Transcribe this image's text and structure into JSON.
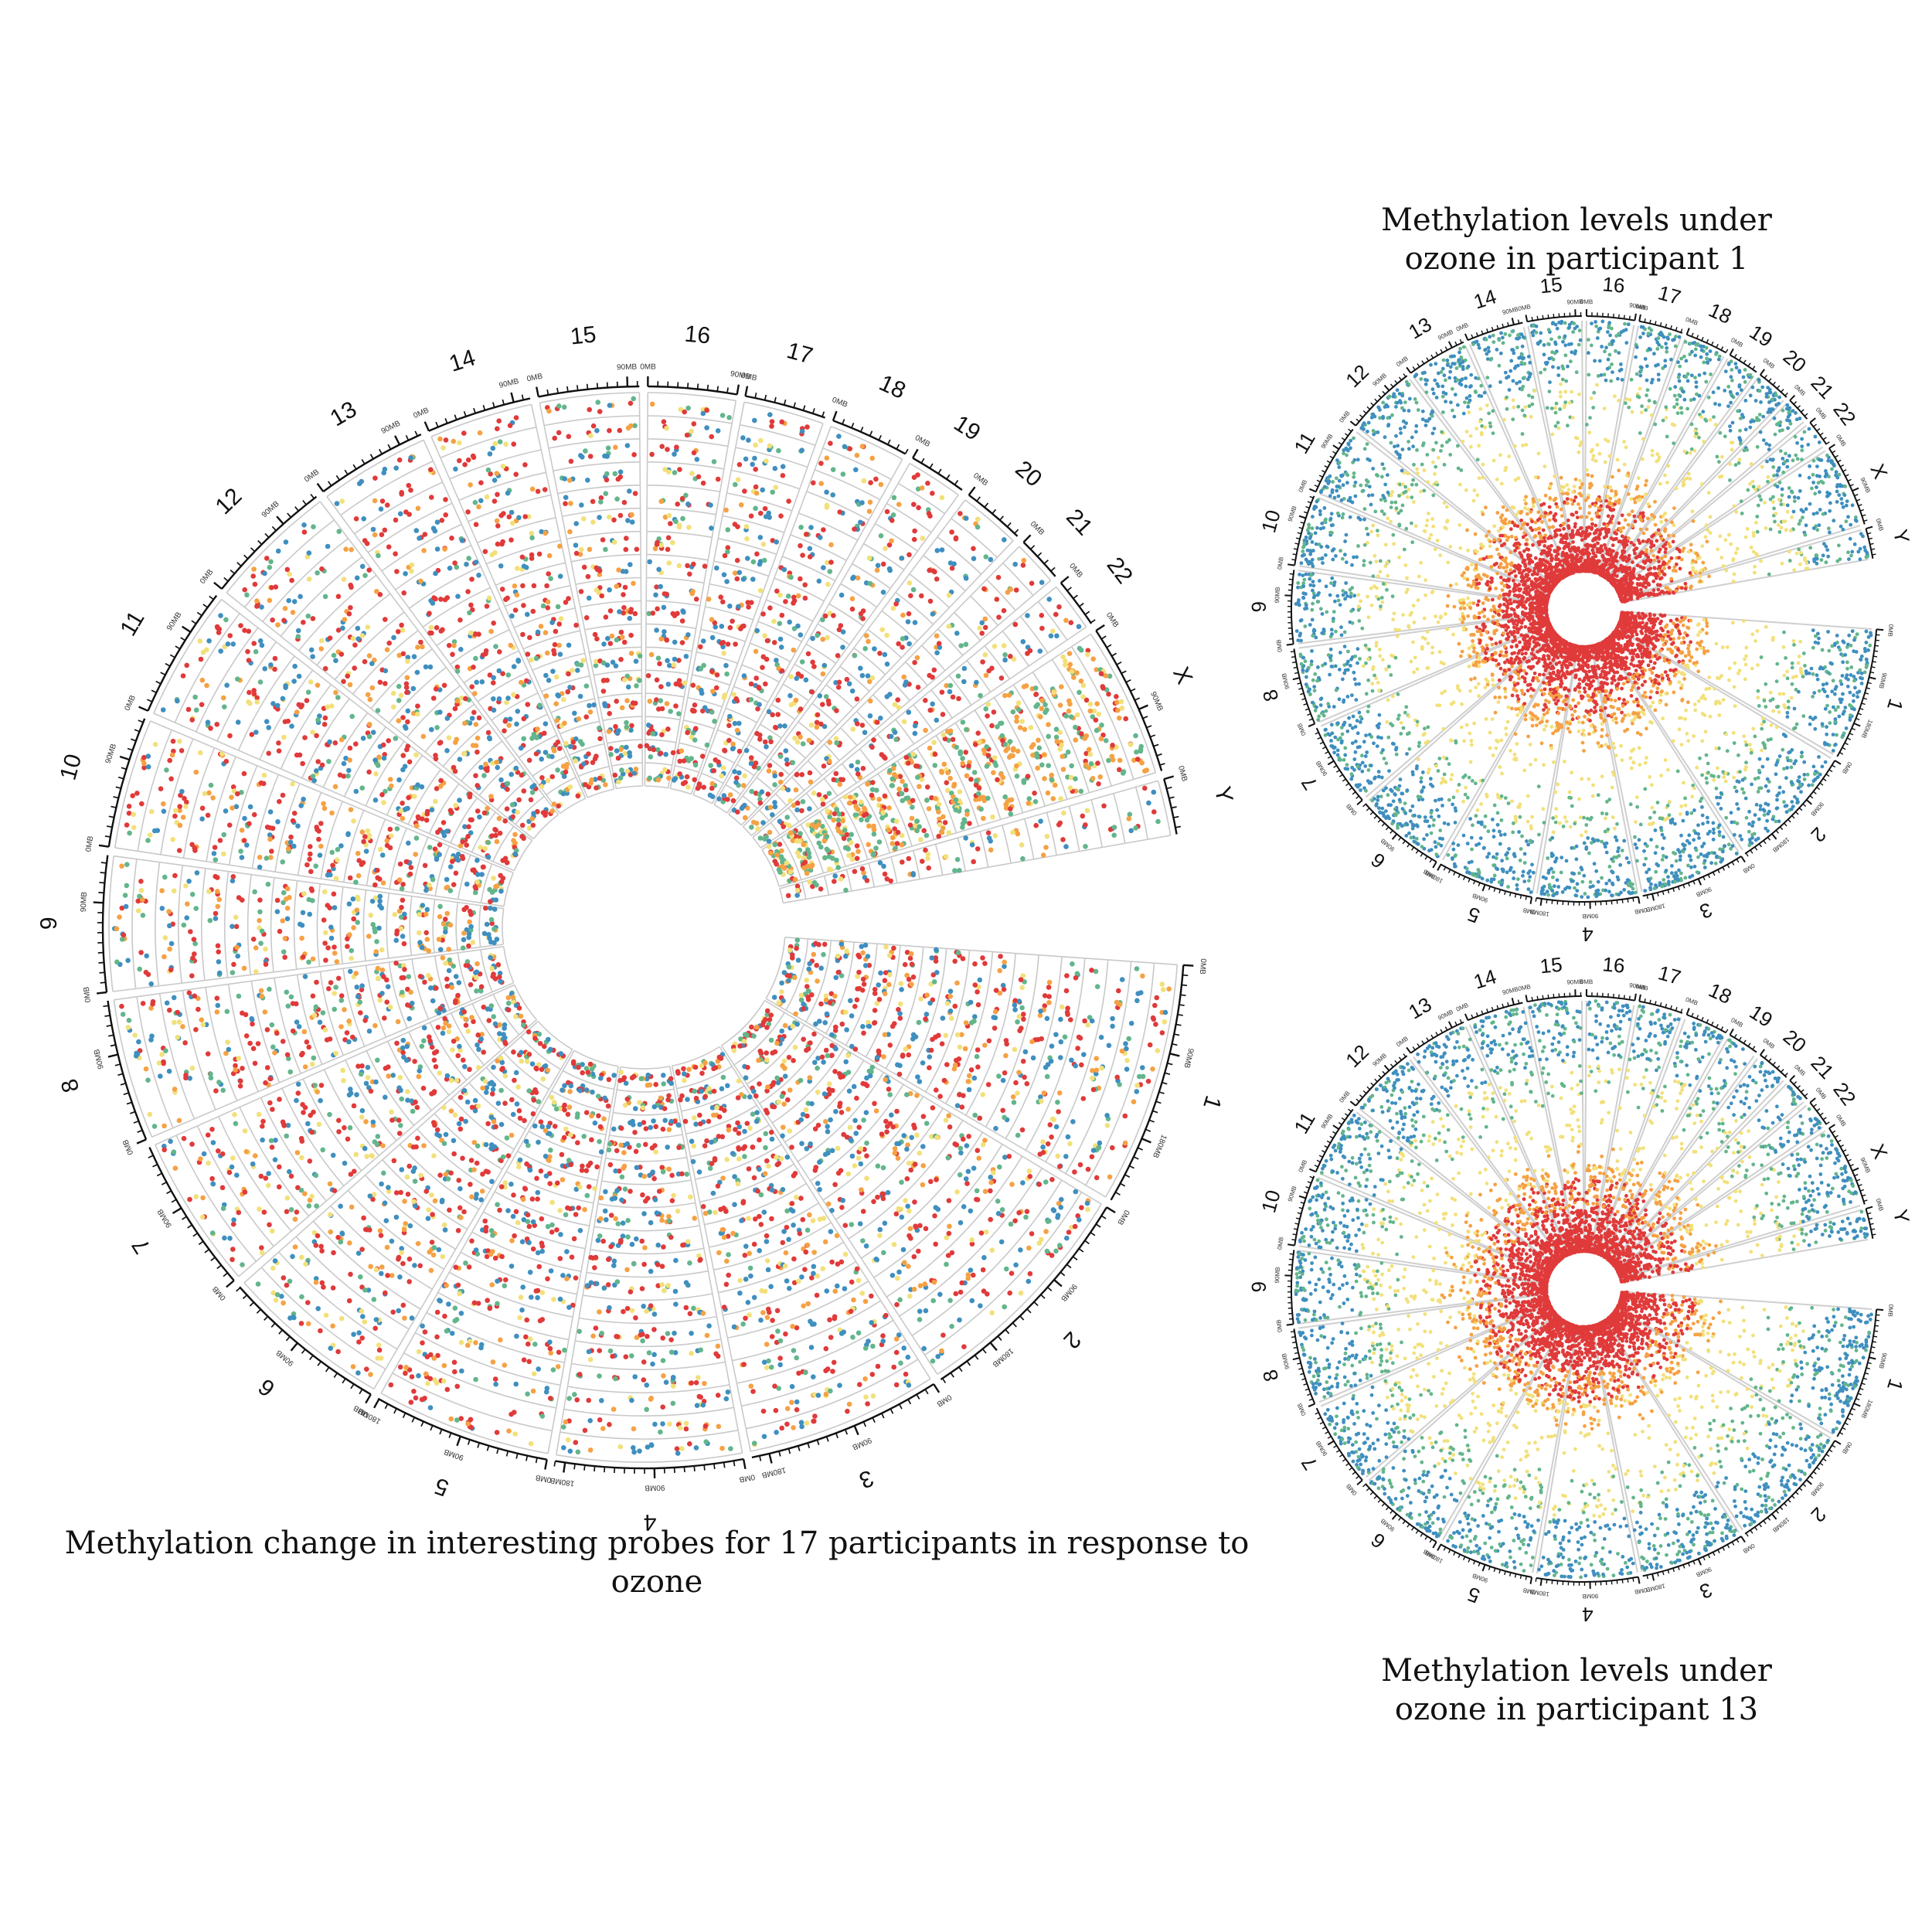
{
  "captions": {
    "main": "Methylation change in interesting probes for 17 participants in response to ozone",
    "participant1_line1": "Methylation levels under",
    "participant1_line2": "ozone in participant 1",
    "participant13_line1": "Methylation levels under",
    "participant13_line2": "ozone in participant 13"
  },
  "chart_data": [
    {
      "type": "scatter",
      "id": "main",
      "layout": "circos",
      "caption": "Methylation change in interesting probes for 17 participants in response to ozone",
      "chromosomes": [
        "1",
        "2",
        "3",
        "4",
        "5",
        "6",
        "7",
        "8",
        "9",
        "10",
        "11",
        "12",
        "13",
        "14",
        "15",
        "16",
        "17",
        "18",
        "19",
        "20",
        "21",
        "22",
        "X",
        "Y"
      ],
      "chromosome_sizes_mb": [
        249,
        242,
        198,
        190,
        181,
        171,
        159,
        145,
        138,
        134,
        135,
        133,
        114,
        107,
        102,
        90,
        83,
        80,
        59,
        64,
        47,
        51,
        156,
        57
      ],
      "tracks": 17,
      "tick_labels": [
        "0MB",
        "90MB",
        "180MB"
      ],
      "colors": [
        "#e03a3a",
        "#f5a144",
        "#f2e07a",
        "#63b58c",
        "#3f8fbf"
      ],
      "grid": true
    },
    {
      "type": "scatter",
      "id": "participant-1",
      "layout": "circos",
      "caption": "Methylation levels under ozone in participant 1",
      "chromosomes": [
        "1",
        "2",
        "3",
        "4",
        "5",
        "6",
        "7",
        "8",
        "9",
        "10",
        "11",
        "12",
        "13",
        "14",
        "15",
        "16",
        "17",
        "18",
        "19",
        "20",
        "21",
        "22",
        "X",
        "Y"
      ],
      "tick_labels": [
        "0MB",
        "90MB",
        "180MB"
      ],
      "colors": [
        "#e03a3a",
        "#f5a144",
        "#f2e07a",
        "#63b58c",
        "#3f8fbf"
      ]
    },
    {
      "type": "scatter",
      "id": "participant-13",
      "layout": "circos",
      "caption": "Methylation levels under ozone in participant 13",
      "chromosomes": [
        "1",
        "2",
        "3",
        "4",
        "5",
        "6",
        "7",
        "8",
        "9",
        "10",
        "11",
        "12",
        "13",
        "14",
        "15",
        "16",
        "17",
        "18",
        "19",
        "20",
        "21",
        "22",
        "X",
        "Y"
      ],
      "tick_labels": [
        "0MB",
        "90MB",
        "180MB"
      ],
      "colors": [
        "#e03a3a",
        "#f5a144",
        "#f2e07a",
        "#63b58c",
        "#3f8fbf"
      ]
    }
  ]
}
